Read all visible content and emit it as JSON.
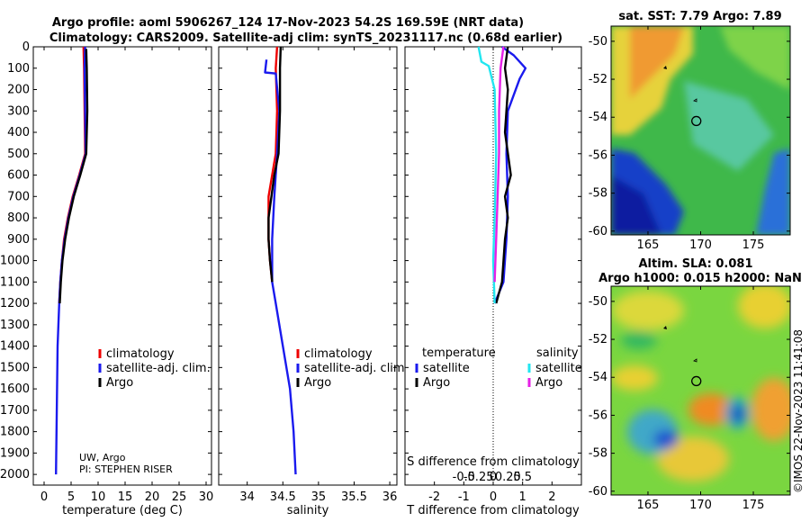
{
  "header": {
    "title_line1": "Argo profile: aoml 5906267_124 17-Nov-2023 54.2S 169.59E (NRT data)",
    "title_line2": "Climatology: CARS2009. Satellite-adj clim: synTS_20231117.nc (0.68d earlier)"
  },
  "credit": {
    "line1": "UW, Argo",
    "line2": "PI: STEPHEN RISER"
  },
  "watermark": "©IMOS 22-Nov-2023 11:41:08",
  "colors": {
    "red": "#ee0000",
    "blue": "#1a1aee",
    "black": "#000000",
    "cyan": "#22e6f0",
    "magenta": "#e620e6"
  },
  "legends": {
    "temp": [
      "climatology",
      "satellite-adj. clim.",
      "Argo"
    ],
    "sal": [
      "climatology",
      "satellite-adj. clim.",
      "Argo"
    ],
    "diff": {
      "temp_header": "temperature",
      "sal_header": "salinity",
      "items": [
        "satellite",
        "Argo"
      ]
    }
  },
  "chart_data": [
    {
      "type": "line",
      "id": "temperature-profile",
      "xlabel": "temperature (deg C)",
      "xlim": [
        -2,
        31
      ],
      "xticks": [
        0,
        5,
        10,
        15,
        20,
        25,
        30
      ],
      "ylim": [
        0,
        2050
      ],
      "yticks": [
        0,
        100,
        200,
        300,
        400,
        500,
        600,
        700,
        800,
        900,
        1000,
        1100,
        1200,
        1300,
        1400,
        1500,
        1600,
        1700,
        1800,
        1900,
        2000
      ],
      "series": [
        {
          "name": "climatology",
          "color": "red",
          "points": [
            [
              7.3,
              0
            ],
            [
              7.4,
              100
            ],
            [
              7.5,
              300
            ],
            [
              7.6,
              500
            ],
            [
              6.5,
              600
            ],
            [
              5.3,
              700
            ],
            [
              4.4,
              800
            ],
            [
              3.7,
              900
            ],
            [
              3.3,
              1000
            ],
            [
              3.0,
              1100
            ],
            [
              2.8,
              1200
            ]
          ]
        },
        {
          "name": "satellite-adj. clim.",
          "color": "blue",
          "points": [
            [
              7.6,
              0
            ],
            [
              7.5,
              100
            ],
            [
              7.6,
              300
            ],
            [
              7.7,
              500
            ],
            [
              6.6,
              600
            ],
            [
              5.4,
              700
            ],
            [
              4.5,
              800
            ],
            [
              3.8,
              900
            ],
            [
              3.3,
              1000
            ],
            [
              3.0,
              1100
            ],
            [
              2.8,
              1200
            ],
            [
              2.5,
              1400
            ],
            [
              2.4,
              1600
            ],
            [
              2.3,
              1800
            ],
            [
              2.2,
              2000
            ]
          ]
        },
        {
          "name": "Argo",
          "color": "black",
          "points": [
            [
              7.8,
              10
            ],
            [
              7.9,
              100
            ],
            [
              8.0,
              300
            ],
            [
              7.8,
              500
            ],
            [
              6.7,
              600
            ],
            [
              5.5,
              700
            ],
            [
              4.6,
              800
            ],
            [
              3.9,
              900
            ],
            [
              3.4,
              1000
            ],
            [
              3.1,
              1100
            ],
            [
              2.9,
              1200
            ]
          ]
        }
      ]
    },
    {
      "type": "line",
      "id": "salinity-profile",
      "xlabel": "salinity",
      "xlim": [
        33.6,
        36.1
      ],
      "xticks": [
        34,
        34.5,
        35,
        35.5,
        36
      ],
      "ylim": [
        0,
        2050
      ],
      "series": [
        {
          "name": "climatology",
          "color": "red",
          "points": [
            [
              34.42,
              0
            ],
            [
              34.4,
              100
            ],
            [
              34.42,
              300
            ],
            [
              34.4,
              500
            ],
            [
              34.35,
              600
            ],
            [
              34.3,
              700
            ],
            [
              34.3,
              800
            ],
            [
              34.3,
              900
            ],
            [
              34.32,
              1000
            ],
            [
              34.35,
              1100
            ]
          ]
        },
        {
          "name": "satellite-adj. clim.",
          "color": "blue",
          "points": [
            [
              34.27,
              60
            ],
            [
              34.25,
              120
            ],
            [
              34.4,
              125
            ],
            [
              34.45,
              300
            ],
            [
              34.42,
              500
            ],
            [
              34.38,
              700
            ],
            [
              34.35,
              900
            ],
            [
              34.35,
              1100
            ],
            [
              34.4,
              1200
            ],
            [
              34.5,
              1400
            ],
            [
              34.6,
              1600
            ],
            [
              34.65,
              1800
            ],
            [
              34.68,
              2000
            ]
          ]
        },
        {
          "name": "Argo",
          "color": "black",
          "points": [
            [
              34.47,
              0
            ],
            [
              34.46,
              100
            ],
            [
              34.46,
              300
            ],
            [
              34.44,
              500
            ],
            [
              34.38,
              600
            ],
            [
              34.34,
              700
            ],
            [
              34.3,
              800
            ],
            [
              34.3,
              900
            ],
            [
              34.32,
              1000
            ],
            [
              34.35,
              1100
            ]
          ]
        }
      ]
    },
    {
      "type": "line",
      "id": "difference-profile",
      "xlabel": "T difference from climatology",
      "xlabel_top": "S difference from climatology",
      "xlim": [
        -3,
        3
      ],
      "xticks": [
        -2,
        -1,
        0,
        1,
        2
      ],
      "xticks_sal": [
        "-0.5",
        "-0.25",
        "0",
        "0.25",
        "0.5"
      ],
      "ylim": [
        0,
        2050
      ],
      "series": [
        {
          "name": "temperature satellite",
          "color": "blue",
          "points": [
            [
              0.3,
              0
            ],
            [
              0.7,
              40
            ],
            [
              1.1,
              100
            ],
            [
              0.9,
              150
            ],
            [
              0.5,
              300
            ],
            [
              0.45,
              500
            ],
            [
              0.5,
              700
            ],
            [
              0.45,
              900
            ],
            [
              0.35,
              1100
            ],
            [
              0.05,
              1200
            ]
          ]
        },
        {
          "name": "temperature Argo",
          "color": "black",
          "points": [
            [
              0.5,
              0
            ],
            [
              0.4,
              100
            ],
            [
              0.5,
              200
            ],
            [
              0.4,
              400
            ],
            [
              0.6,
              600
            ],
            [
              0.4,
              700
            ],
            [
              0.5,
              800
            ],
            [
              0.4,
              900
            ],
            [
              0.3,
              1100
            ],
            [
              0.1,
              1200
            ]
          ]
        },
        {
          "name": "salinity satellite",
          "color": "cyan",
          "points": [
            [
              -0.5,
              0
            ],
            [
              -0.4,
              70
            ],
            [
              -0.15,
              90
            ],
            [
              0.05,
              200
            ],
            [
              0.1,
              500
            ],
            [
              0.05,
              800
            ],
            [
              0,
              1000
            ],
            [
              0.05,
              1200
            ]
          ]
        },
        {
          "name": "salinity Argo",
          "color": "magenta",
          "points": [
            [
              0.35,
              0
            ],
            [
              0.25,
              100
            ],
            [
              0.2,
              300
            ],
            [
              0.2,
              500
            ],
            [
              0.15,
              700
            ],
            [
              0.1,
              900
            ],
            [
              0.05,
              1100
            ]
          ]
        }
      ]
    },
    {
      "type": "heatmap",
      "id": "sst-map",
      "title": "sat. SST: 7.79 Argo: 7.89",
      "xticks": [
        165,
        170,
        175
      ],
      "yticks": [
        -50,
        -52,
        -54,
        -56,
        -58,
        -60
      ],
      "xlim": [
        161.5,
        178.5
      ],
      "ylim": [
        -60.2,
        -49.2
      ],
      "argo_position": [
        169.59,
        -54.2
      ]
    },
    {
      "type": "heatmap",
      "id": "sla-map",
      "title_line1": "Altim. SLA: 0.081",
      "title_line2": "Argo h1000: 0.015 h2000: NaN",
      "xticks": [
        165,
        170,
        175
      ],
      "yticks": [
        -50,
        -52,
        -54,
        -56,
        -58,
        -60
      ],
      "xlim": [
        161.5,
        178.5
      ],
      "ylim": [
        -60.2,
        -49.2
      ],
      "argo_position": [
        169.59,
        -54.2
      ]
    }
  ]
}
